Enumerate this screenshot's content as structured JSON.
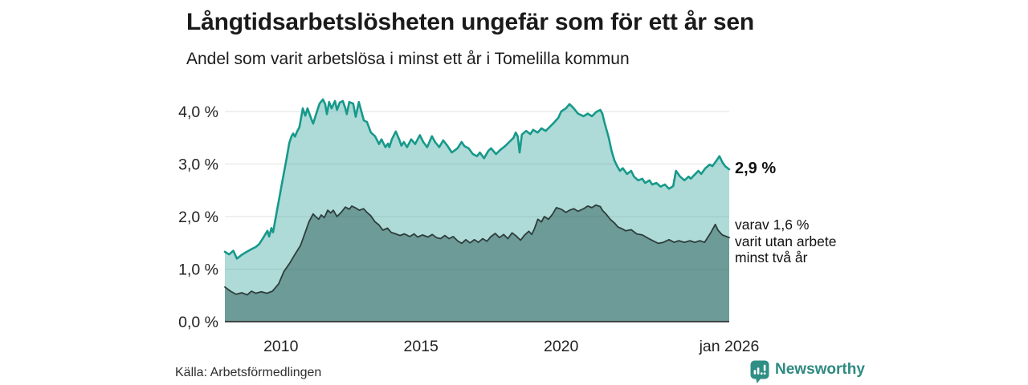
{
  "header": {
    "title": "Långtidsarbetslösheten ungefär som för ett år sen",
    "subtitle": "Andel som varit arbetslösa i minst ett år i Tomelilla kommun"
  },
  "footer": {
    "source": "Källa: Arbetsförmedlingen",
    "brand": "Newsworthy",
    "brand_color": "#2e8a80"
  },
  "chart_data": {
    "type": "area",
    "x_range": [
      2008,
      2026
    ],
    "y_range": [
      0,
      4.4
    ],
    "grid": true,
    "grid_color": "#e2e2e2",
    "axis_color": "#3f4445",
    "text_color": "#222222",
    "y_ticks": [
      {
        "v": 0,
        "label": "0,0 %"
      },
      {
        "v": 1,
        "label": "1,0 %"
      },
      {
        "v": 2,
        "label": "2,0 %"
      },
      {
        "v": 3,
        "label": "3,0 %"
      },
      {
        "v": 4,
        "label": "4,0 %"
      }
    ],
    "x_ticks": [
      {
        "v": 2010,
        "label": "2010"
      },
      {
        "v": 2015,
        "label": "2015"
      },
      {
        "v": 2020,
        "label": "2020"
      },
      {
        "v": 2026,
        "label": "jan 2026"
      }
    ],
    "series": [
      {
        "name": "Andel som varit arbetslösa i minst ett år",
        "line_color": "#17998b",
        "fill_color": "rgba(23,153,139,0.35)",
        "line_width": 2.6,
        "end_value": "2,9 %",
        "end_label": "2,9 %",
        "points": [
          [
            2008.0,
            1.33
          ],
          [
            2008.15,
            1.28
          ],
          [
            2008.3,
            1.35
          ],
          [
            2008.43,
            1.2
          ],
          [
            2008.6,
            1.27
          ],
          [
            2008.75,
            1.32
          ],
          [
            2008.95,
            1.38
          ],
          [
            2009.1,
            1.42
          ],
          [
            2009.23,
            1.48
          ],
          [
            2009.35,
            1.58
          ],
          [
            2009.43,
            1.65
          ],
          [
            2009.52,
            1.73
          ],
          [
            2009.58,
            1.62
          ],
          [
            2009.66,
            1.78
          ],
          [
            2009.72,
            1.7
          ],
          [
            2009.78,
            1.88
          ],
          [
            2009.92,
            2.29
          ],
          [
            2010.06,
            2.7
          ],
          [
            2010.2,
            3.1
          ],
          [
            2010.3,
            3.4
          ],
          [
            2010.38,
            3.53
          ],
          [
            2010.44,
            3.58
          ],
          [
            2010.5,
            3.52
          ],
          [
            2010.58,
            3.62
          ],
          [
            2010.66,
            3.7
          ],
          [
            2010.78,
            4.06
          ],
          [
            2010.87,
            3.92
          ],
          [
            2010.95,
            4.06
          ],
          [
            2011.07,
            3.88
          ],
          [
            2011.15,
            3.77
          ],
          [
            2011.24,
            3.92
          ],
          [
            2011.38,
            4.15
          ],
          [
            2011.5,
            4.23
          ],
          [
            2011.58,
            4.14
          ],
          [
            2011.64,
            3.95
          ],
          [
            2011.72,
            4.18
          ],
          [
            2011.81,
            4.06
          ],
          [
            2011.93,
            4.2
          ],
          [
            2012.0,
            4.03
          ],
          [
            2012.1,
            4.17
          ],
          [
            2012.21,
            4.2
          ],
          [
            2012.3,
            4.06
          ],
          [
            2012.35,
            3.95
          ],
          [
            2012.44,
            4.18
          ],
          [
            2012.58,
            4.15
          ],
          [
            2012.67,
            3.9
          ],
          [
            2012.78,
            4.18
          ],
          [
            2012.96,
            3.83
          ],
          [
            2013.07,
            3.8
          ],
          [
            2013.21,
            3.6
          ],
          [
            2013.36,
            3.53
          ],
          [
            2013.5,
            3.38
          ],
          [
            2013.59,
            3.47
          ],
          [
            2013.73,
            3.32
          ],
          [
            2013.82,
            3.39
          ],
          [
            2013.87,
            3.32
          ],
          [
            2013.96,
            3.47
          ],
          [
            2014.1,
            3.62
          ],
          [
            2014.22,
            3.47
          ],
          [
            2014.3,
            3.35
          ],
          [
            2014.39,
            3.42
          ],
          [
            2014.5,
            3.32
          ],
          [
            2014.65,
            3.47
          ],
          [
            2014.79,
            3.38
          ],
          [
            2014.88,
            3.47
          ],
          [
            2014.96,
            3.55
          ],
          [
            2015.08,
            3.42
          ],
          [
            2015.22,
            3.32
          ],
          [
            2015.3,
            3.42
          ],
          [
            2015.39,
            3.53
          ],
          [
            2015.5,
            3.42
          ],
          [
            2015.65,
            3.32
          ],
          [
            2015.79,
            3.45
          ],
          [
            2015.94,
            3.35
          ],
          [
            2016.1,
            3.22
          ],
          [
            2016.3,
            3.3
          ],
          [
            2016.45,
            3.42
          ],
          [
            2016.55,
            3.34
          ],
          [
            2016.7,
            3.3
          ],
          [
            2016.85,
            3.19
          ],
          [
            2017.0,
            3.15
          ],
          [
            2017.1,
            3.22
          ],
          [
            2017.25,
            3.11
          ],
          [
            2017.4,
            3.25
          ],
          [
            2017.5,
            3.3
          ],
          [
            2017.68,
            3.19
          ],
          [
            2017.83,
            3.27
          ],
          [
            2018.0,
            3.34
          ],
          [
            2018.15,
            3.42
          ],
          [
            2018.3,
            3.5
          ],
          [
            2018.38,
            3.6
          ],
          [
            2018.45,
            3.53
          ],
          [
            2018.52,
            3.22
          ],
          [
            2018.6,
            3.56
          ],
          [
            2018.75,
            3.63
          ],
          [
            2018.9,
            3.57
          ],
          [
            2019.0,
            3.65
          ],
          [
            2019.16,
            3.6
          ],
          [
            2019.3,
            3.68
          ],
          [
            2019.45,
            3.63
          ],
          [
            2019.6,
            3.71
          ],
          [
            2019.75,
            3.79
          ],
          [
            2019.9,
            3.88
          ],
          [
            2020.0,
            4.0
          ],
          [
            2020.17,
            4.06
          ],
          [
            2020.3,
            4.14
          ],
          [
            2020.45,
            4.06
          ],
          [
            2020.6,
            3.96
          ],
          [
            2020.8,
            3.91
          ],
          [
            2020.95,
            3.96
          ],
          [
            2021.1,
            3.91
          ],
          [
            2021.25,
            3.99
          ],
          [
            2021.4,
            4.03
          ],
          [
            2021.47,
            3.96
          ],
          [
            2021.55,
            3.79
          ],
          [
            2021.7,
            3.5
          ],
          [
            2021.8,
            3.25
          ],
          [
            2021.9,
            3.07
          ],
          [
            2022.0,
            2.96
          ],
          [
            2022.1,
            2.87
          ],
          [
            2022.2,
            2.92
          ],
          [
            2022.35,
            2.81
          ],
          [
            2022.5,
            2.87
          ],
          [
            2022.6,
            2.76
          ],
          [
            2022.75,
            2.69
          ],
          [
            2022.9,
            2.72
          ],
          [
            2023.0,
            2.64
          ],
          [
            2023.15,
            2.69
          ],
          [
            2023.25,
            2.61
          ],
          [
            2023.4,
            2.64
          ],
          [
            2023.55,
            2.57
          ],
          [
            2023.7,
            2.61
          ],
          [
            2023.85,
            2.53
          ],
          [
            2024.0,
            2.58
          ],
          [
            2024.1,
            2.87
          ],
          [
            2024.25,
            2.76
          ],
          [
            2024.4,
            2.69
          ],
          [
            2024.55,
            2.76
          ],
          [
            2024.63,
            2.72
          ],
          [
            2024.75,
            2.79
          ],
          [
            2024.9,
            2.87
          ],
          [
            2025.0,
            2.81
          ],
          [
            2025.15,
            2.92
          ],
          [
            2025.3,
            2.99
          ],
          [
            2025.4,
            2.96
          ],
          [
            2025.55,
            3.07
          ],
          [
            2025.65,
            3.15
          ],
          [
            2025.75,
            3.04
          ],
          [
            2025.85,
            2.96
          ],
          [
            2026.0,
            2.9
          ]
        ]
      },
      {
        "name": "varav utan arbete minst två år",
        "line_color": "#2e3d3c",
        "fill_color": "rgba(32,78,74,0.45)",
        "line_width": 1.8,
        "end_value": "1,6 %",
        "end_label": "varav 1,6 %\nvarit utan arbete\nminst två år",
        "points": [
          [
            2008.0,
            0.66
          ],
          [
            2008.2,
            0.58
          ],
          [
            2008.4,
            0.52
          ],
          [
            2008.6,
            0.55
          ],
          [
            2008.8,
            0.51
          ],
          [
            2008.95,
            0.58
          ],
          [
            2009.1,
            0.54
          ],
          [
            2009.3,
            0.57
          ],
          [
            2009.5,
            0.54
          ],
          [
            2009.7,
            0.58
          ],
          [
            2009.92,
            0.72
          ],
          [
            2010.1,
            0.95
          ],
          [
            2010.3,
            1.1
          ],
          [
            2010.5,
            1.28
          ],
          [
            2010.7,
            1.45
          ],
          [
            2010.87,
            1.7
          ],
          [
            2011.0,
            1.9
          ],
          [
            2011.15,
            2.05
          ],
          [
            2011.24,
            2.0
          ],
          [
            2011.35,
            1.95
          ],
          [
            2011.44,
            2.03
          ],
          [
            2011.55,
            1.98
          ],
          [
            2011.67,
            2.12
          ],
          [
            2011.78,
            2.07
          ],
          [
            2011.87,
            2.12
          ],
          [
            2012.0,
            2.0
          ],
          [
            2012.15,
            2.08
          ],
          [
            2012.3,
            2.18
          ],
          [
            2012.44,
            2.14
          ],
          [
            2012.53,
            2.2
          ],
          [
            2012.65,
            2.17
          ],
          [
            2012.8,
            2.12
          ],
          [
            2012.95,
            2.15
          ],
          [
            2013.07,
            2.08
          ],
          [
            2013.2,
            2.02
          ],
          [
            2013.36,
            1.9
          ],
          [
            2013.5,
            1.84
          ],
          [
            2013.64,
            1.74
          ],
          [
            2013.8,
            1.78
          ],
          [
            2013.93,
            1.7
          ],
          [
            2014.1,
            1.67
          ],
          [
            2014.25,
            1.64
          ],
          [
            2014.4,
            1.67
          ],
          [
            2014.6,
            1.62
          ],
          [
            2014.75,
            1.67
          ],
          [
            2014.88,
            1.61
          ],
          [
            2015.05,
            1.65
          ],
          [
            2015.25,
            1.61
          ],
          [
            2015.4,
            1.66
          ],
          [
            2015.55,
            1.6
          ],
          [
            2015.7,
            1.58
          ],
          [
            2015.85,
            1.64
          ],
          [
            2016.0,
            1.58
          ],
          [
            2016.15,
            1.62
          ],
          [
            2016.3,
            1.54
          ],
          [
            2016.45,
            1.49
          ],
          [
            2016.6,
            1.56
          ],
          [
            2016.75,
            1.5
          ],
          [
            2016.9,
            1.56
          ],
          [
            2017.05,
            1.51
          ],
          [
            2017.2,
            1.58
          ],
          [
            2017.35,
            1.53
          ],
          [
            2017.5,
            1.62
          ],
          [
            2017.65,
            1.68
          ],
          [
            2017.8,
            1.6
          ],
          [
            2017.95,
            1.66
          ],
          [
            2018.1,
            1.58
          ],
          [
            2018.25,
            1.69
          ],
          [
            2018.4,
            1.63
          ],
          [
            2018.55,
            1.55
          ],
          [
            2018.7,
            1.65
          ],
          [
            2018.85,
            1.72
          ],
          [
            2018.95,
            1.66
          ],
          [
            2019.05,
            1.77
          ],
          [
            2019.17,
            1.95
          ],
          [
            2019.3,
            1.9
          ],
          [
            2019.4,
            2.0
          ],
          [
            2019.55,
            1.95
          ],
          [
            2019.7,
            2.05
          ],
          [
            2019.83,
            2.17
          ],
          [
            2020.0,
            2.14
          ],
          [
            2020.17,
            2.08
          ],
          [
            2020.3,
            2.12
          ],
          [
            2020.45,
            2.15
          ],
          [
            2020.6,
            2.1
          ],
          [
            2020.8,
            2.15
          ],
          [
            2020.95,
            2.2
          ],
          [
            2021.1,
            2.17
          ],
          [
            2021.24,
            2.22
          ],
          [
            2021.4,
            2.19
          ],
          [
            2021.47,
            2.12
          ],
          [
            2021.6,
            2.05
          ],
          [
            2021.75,
            1.95
          ],
          [
            2021.9,
            1.88
          ],
          [
            2022.03,
            1.8
          ],
          [
            2022.17,
            1.77
          ],
          [
            2022.3,
            1.73
          ],
          [
            2022.5,
            1.75
          ],
          [
            2022.7,
            1.67
          ],
          [
            2022.9,
            1.65
          ],
          [
            2023.1,
            1.59
          ],
          [
            2023.27,
            1.54
          ],
          [
            2023.47,
            1.49
          ],
          [
            2023.65,
            1.51
          ],
          [
            2023.85,
            1.56
          ],
          [
            2024.03,
            1.51
          ],
          [
            2024.2,
            1.54
          ],
          [
            2024.4,
            1.51
          ],
          [
            2024.6,
            1.54
          ],
          [
            2024.77,
            1.51
          ],
          [
            2024.95,
            1.54
          ],
          [
            2025.12,
            1.51
          ],
          [
            2025.35,
            1.7
          ],
          [
            2025.5,
            1.85
          ],
          [
            2025.6,
            1.74
          ],
          [
            2025.75,
            1.65
          ],
          [
            2025.9,
            1.62
          ],
          [
            2026.0,
            1.6
          ]
        ]
      }
    ]
  }
}
